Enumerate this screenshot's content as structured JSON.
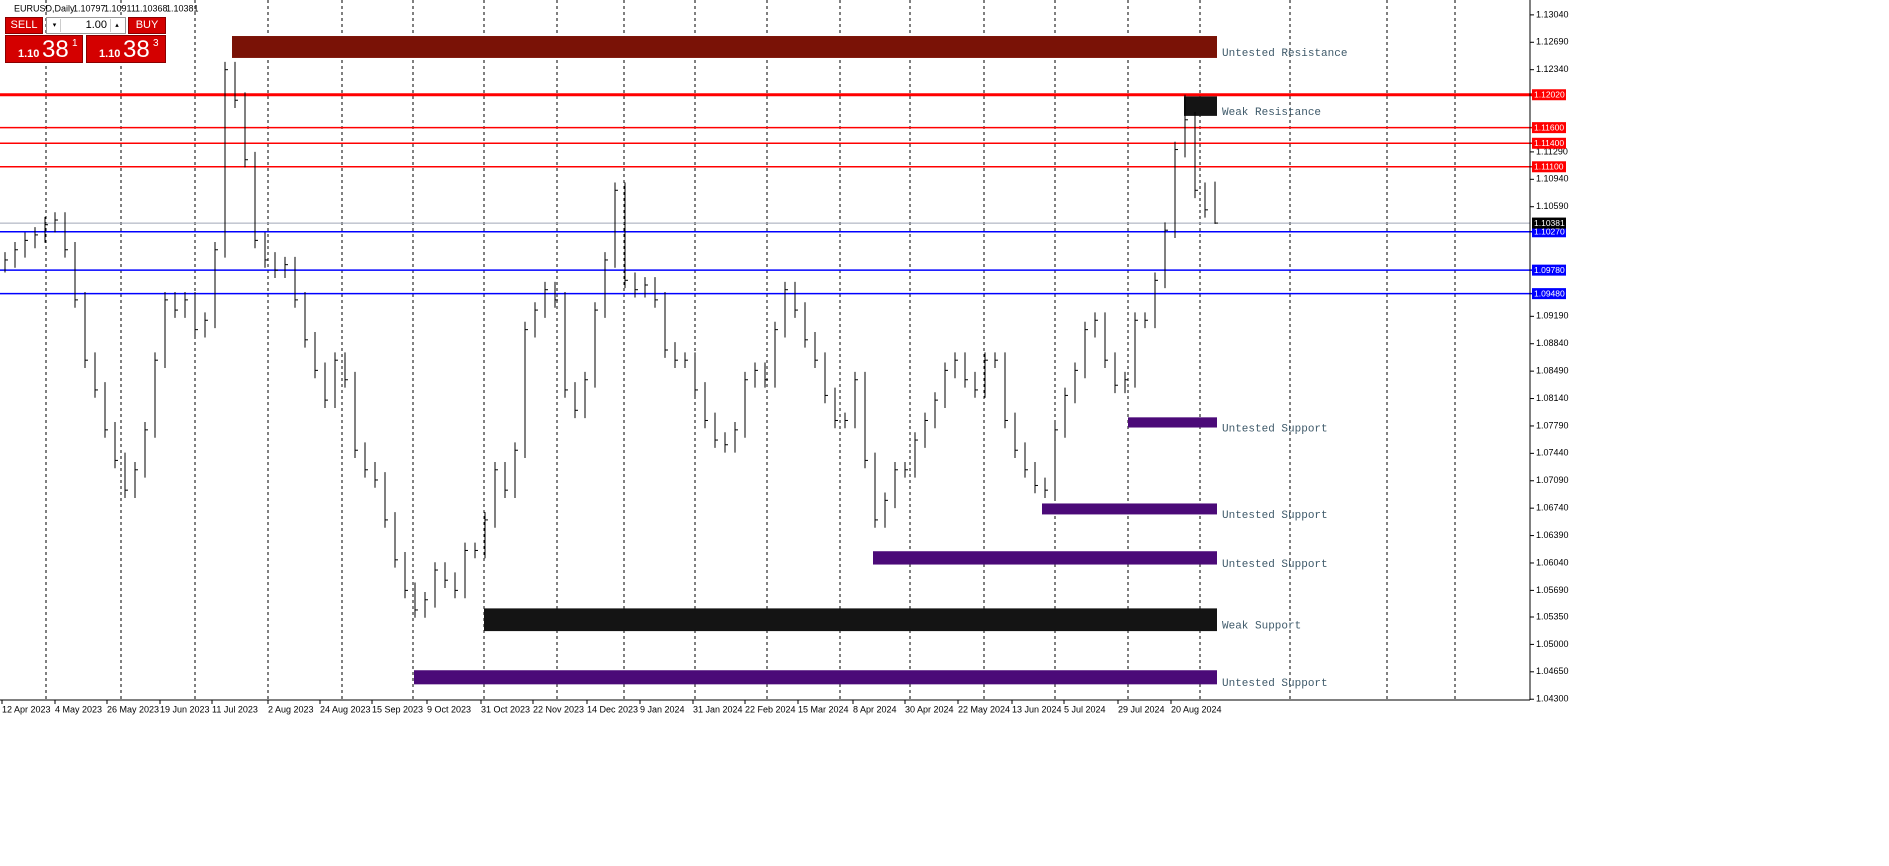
{
  "header": {
    "symbol": "EURUSD,Daily",
    "ohlc": [
      "1.10797",
      "1.10911",
      "1.10368",
      "1.10381"
    ]
  },
  "trade_panel": {
    "sell": "SELL",
    "lots": "1.00",
    "buy": "BUY",
    "bid": {
      "big": "1.10",
      "pips": "38",
      "point": "1"
    },
    "ask": {
      "big": "1.10",
      "pips": "38",
      "point": "3"
    }
  },
  "chart_data": {
    "type": "ohlc",
    "color": "#000000",
    "high": [
      1.1001,
      1.1014,
      1.1026,
      1.1033,
      1.1046,
      1.1052,
      1.1052,
      1.1014,
      1.095,
      1.0873,
      1.0835,
      1.0784,
      1.0745,
      1.0733,
      1.0784,
      1.0873,
      1.095,
      1.095,
      1.095,
      1.095,
      1.0924,
      1.1014,
      1.1244,
      1.1244,
      1.1205,
      1.1129,
      1.1026,
      1.1001,
      1.0995,
      1.0995,
      1.095,
      1.0899,
      1.086,
      1.0873,
      1.0873,
      1.0848,
      1.0758,
      1.0733,
      1.072,
      1.0669,
      1.0618,
      1.0579,
      1.0567,
      1.0605,
      1.0605,
      1.0592,
      1.063,
      1.063,
      1.0669,
      1.0733,
      1.0733,
      1.0758,
      1.0912,
      1.0937,
      1.0963,
      1.0963,
      1.095,
      1.0835,
      1.0848,
      1.0937,
      1.1001,
      1.109,
      1.109,
      1.0975,
      1.0969,
      1.0969,
      1.095,
      1.0886,
      1.0873,
      1.0873,
      1.0835,
      1.0796,
      1.0771,
      1.0784,
      1.0848,
      1.086,
      1.086,
      1.0912,
      1.0963,
      1.0963,
      1.0937,
      1.0899,
      1.0873,
      1.0828,
      1.0796,
      1.0848,
      1.0848,
      1.0745,
      1.0694,
      1.0733,
      1.0733,
      1.0771,
      1.0796,
      1.0822,
      1.086,
      1.0873,
      1.0873,
      1.0848,
      1.0873,
      1.0873,
      1.0873,
      1.0796,
      1.0758,
      1.0733,
      1.0713,
      1.0784,
      1.0828,
      1.086,
      1.0912,
      1.0924,
      1.0924,
      1.0873,
      1.0848,
      1.0924,
      1.0924,
      1.0975,
      1.1039,
      1.1142,
      1.1202,
      1.118,
      1.109,
      1.1091
    ],
    "low": [
      1.0975,
      1.0981,
      1.0994,
      1.1006,
      1.1013,
      1.1026,
      1.0994,
      1.093,
      1.0853,
      1.0815,
      1.0764,
      1.0725,
      1.0687,
      1.0687,
      1.0713,
      1.0764,
      1.0853,
      1.0917,
      1.0917,
      1.0892,
      1.0892,
      1.0904,
      1.0994,
      1.1185,
      1.1109,
      1.1006,
      1.0981,
      1.0968,
      1.0968,
      1.093,
      1.0879,
      1.084,
      1.0802,
      1.0802,
      1.0828,
      1.0738,
      1.0713,
      1.07,
      1.0649,
      1.0598,
      1.0559,
      1.0534,
      1.0534,
      1.0547,
      1.0572,
      1.0559,
      1.0559,
      1.061,
      1.061,
      1.0649,
      1.0687,
      1.0687,
      1.0738,
      1.0892,
      1.0917,
      1.093,
      1.0815,
      1.0789,
      1.0789,
      1.0828,
      1.0917,
      1.0981,
      1.0955,
      1.0943,
      1.0943,
      1.093,
      1.0866,
      1.0853,
      1.0853,
      1.0815,
      1.0776,
      1.0751,
      1.0745,
      1.0745,
      1.0764,
      1.0828,
      1.0828,
      1.0828,
      1.0892,
      1.0917,
      1.0879,
      1.0853,
      1.0808,
      1.0776,
      1.0776,
      1.0776,
      1.0725,
      1.0649,
      1.0649,
      1.0674,
      1.0713,
      1.0713,
      1.0751,
      1.0776,
      1.0802,
      1.084,
      1.0828,
      1.0815,
      1.0815,
      1.0853,
      1.0776,
      1.0738,
      1.0713,
      1.0693,
      1.0687,
      1.0687,
      1.0764,
      1.0808,
      1.084,
      1.0892,
      1.0853,
      1.0821,
      1.0821,
      1.0828,
      1.0904,
      1.0904,
      1.0955,
      1.1019,
      1.1122,
      1.107,
      1.1045,
      1.1037
    ],
    "close": [
      1.0991,
      1.1004,
      1.1016,
      1.1023,
      1.1036,
      1.1042,
      1.1004,
      1.094,
      1.0863,
      1.0825,
      1.0774,
      1.0735,
      1.0697,
      1.0723,
      1.0774,
      1.0863,
      1.094,
      1.0927,
      1.094,
      1.0902,
      1.0914,
      1.1004,
      1.1234,
      1.1195,
      1.1119,
      1.1016,
      1.0991,
      1.0978,
      1.0985,
      1.094,
      1.0889,
      1.085,
      1.0812,
      1.0863,
      1.0838,
      1.0748,
      1.0723,
      1.071,
      1.0659,
      1.0608,
      1.0569,
      1.0544,
      1.0557,
      1.0595,
      1.0582,
      1.0569,
      1.062,
      1.062,
      1.0659,
      1.0723,
      1.0697,
      1.0748,
      1.0902,
      1.0927,
      1.0953,
      1.094,
      1.0825,
      1.0799,
      1.0838,
      1.0927,
      1.0991,
      1.108,
      1.0965,
      1.0953,
      1.0959,
      1.094,
      1.0876,
      1.0863,
      1.0863,
      1.0825,
      1.0786,
      1.0761,
      1.0755,
      1.0774,
      1.0838,
      1.085,
      1.0838,
      1.0902,
      1.0953,
      1.0927,
      1.0889,
      1.0863,
      1.0818,
      1.0786,
      1.0786,
      1.0838,
      1.0735,
      1.0659,
      1.0684,
      1.0723,
      1.0723,
      1.0761,
      1.0786,
      1.0812,
      1.085,
      1.0863,
      1.0838,
      1.0825,
      1.0863,
      1.0863,
      1.0786,
      1.0748,
      1.0723,
      1.0703,
      1.0697,
      1.0774,
      1.0818,
      1.085,
      1.0902,
      1.0914,
      1.0863,
      1.0831,
      1.0838,
      1.0914,
      1.0914,
      1.0965,
      1.1029,
      1.1132,
      1.117,
      1.108,
      1.1055,
      1.10381
    ],
    "x_labels": [
      "12 Apr 2023",
      "4 May 2023",
      "26 May 2023",
      "19 Jun 2023",
      "11 Jul 2023",
      "2 Aug 2023",
      "24 Aug 2023",
      "15 Sep 2023",
      "9 Oct 2023",
      "31 Oct 2023",
      "22 Nov 2023",
      "14 Dec 2023",
      "9 Jan 2024",
      "31 Jan 2024",
      "22 Feb 2024",
      "15 Mar 2024",
      "8 Apr 2024",
      "30 Apr 2024",
      "22 May 2024",
      "13 Jun 2024",
      "5 Jul 2024",
      "29 Jul 2024",
      "20 Aug 2024"
    ],
    "ylim": [
      1.0429,
      1.1323
    ],
    "yticks": [
      {
        "value": 1.1304,
        "label": "1.13040"
      },
      {
        "value": 1.1269,
        "label": "1.12690"
      },
      {
        "value": 1.1234,
        "label": "1.12340"
      },
      {
        "value": 1.1129,
        "label": "1.11290"
      },
      {
        "value": 1.1094,
        "label": "1.10940"
      },
      {
        "value": 1.1059,
        "label": "1.10590"
      },
      {
        "value": 1.0919,
        "label": "1.09190"
      },
      {
        "value": 1.0884,
        "label": "1.08840"
      },
      {
        "value": 1.0849,
        "label": "1.08490"
      },
      {
        "value": 1.0814,
        "label": "1.08140"
      },
      {
        "value": 1.0779,
        "label": "1.07790"
      },
      {
        "value": 1.0744,
        "label": "1.07440"
      },
      {
        "value": 1.0709,
        "label": "1.07090"
      },
      {
        "value": 1.0674,
        "label": "1.06740"
      },
      {
        "value": 1.0639,
        "label": "1.06390"
      },
      {
        "value": 1.0604,
        "label": "1.06040"
      },
      {
        "value": 1.0569,
        "label": "1.05690"
      },
      {
        "value": 1.0535,
        "label": "1.05350"
      },
      {
        "value": 1.05,
        "label": "1.05000"
      },
      {
        "value": 1.0465,
        "label": "1.04650"
      },
      {
        "value": 1.043,
        "label": "1.04300"
      }
    ],
    "levels": [
      {
        "value": 1.1202,
        "label": "1.12020",
        "color": "#ff0000",
        "width": 3
      },
      {
        "value": 1.116,
        "label": "1.11600",
        "color": "#ff0000",
        "width": 1.5
      },
      {
        "value": 1.114,
        "label": "1.11400",
        "color": "#ff0000",
        "width": 1.5
      },
      {
        "value": 1.111,
        "label": "1.11100",
        "color": "#ff0000",
        "width": 1.5
      },
      {
        "value": 1.1027,
        "label": "1.10270",
        "color": "#0000ff",
        "width": 1.5
      },
      {
        "value": 1.0978,
        "label": "1.09780",
        "color": "#0000ff",
        "width": 1.5
      },
      {
        "value": 1.0948,
        "label": "1.09480",
        "color": "#0000ff",
        "width": 1.5
      }
    ],
    "current": {
      "value": 1.10381,
      "label": "1.10381",
      "color": "#a0a8b8"
    },
    "zones": [
      {
        "name": "Untested Resistance",
        "top": 1.1277,
        "bottom": 1.1249,
        "color": "#7a1206"
      },
      {
        "name": "Weak Resistance",
        "top": 1.12,
        "bottom": 1.1175,
        "color": "#141414"
      },
      {
        "name": "Untested Support",
        "top": 1.079,
        "bottom": 1.0777,
        "color": "#4b0a78"
      },
      {
        "name": "Untested Support",
        "top": 1.068,
        "bottom": 1.0666,
        "color": "#4b0a78"
      },
      {
        "name": "Untested Support",
        "top": 1.0619,
        "bottom": 1.0602,
        "color": "#4b0a78"
      },
      {
        "name": "Weak Support",
        "top": 1.0546,
        "bottom": 1.0517,
        "color": "#141414"
      },
      {
        "name": "Untested Support",
        "top": 1.0467,
        "bottom": 1.0449,
        "color": "#4b0a78"
      }
    ]
  }
}
